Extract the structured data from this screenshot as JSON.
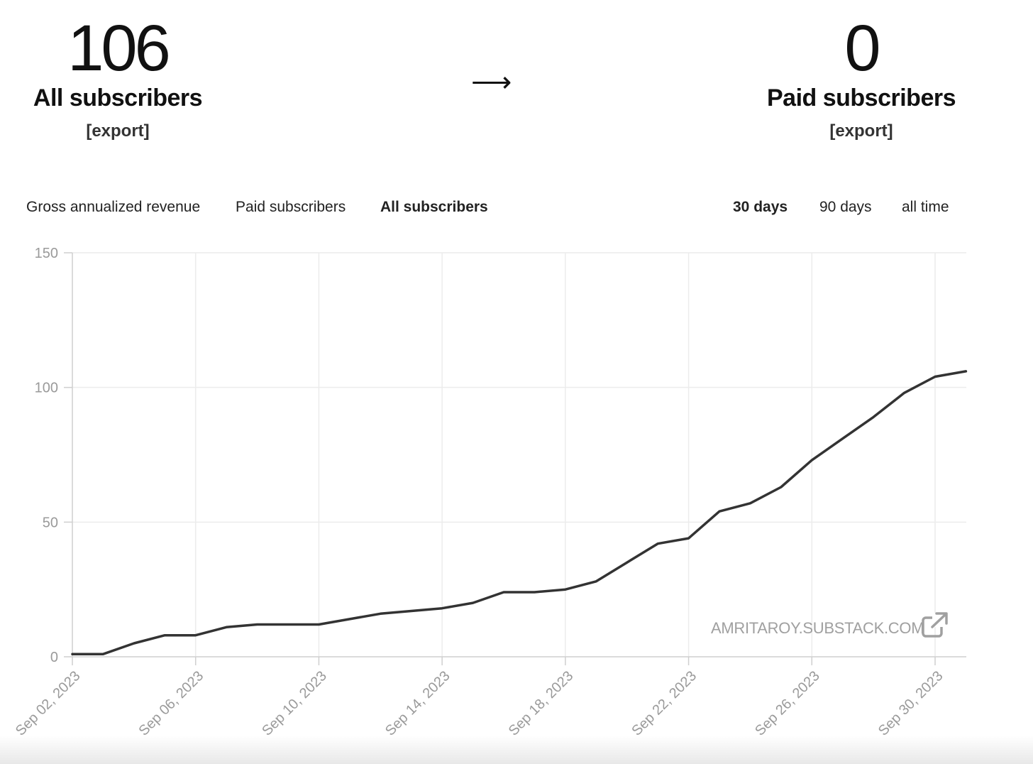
{
  "summary": {
    "all_subscribers": {
      "count": "106",
      "label": "All subscribers",
      "export": "[export]"
    },
    "arrow": "⟶",
    "paid_subscribers": {
      "count": "0",
      "label": "Paid subscribers",
      "export": "[export]"
    }
  },
  "metric_tabs": [
    {
      "label": "Gross annualized revenue",
      "active": false
    },
    {
      "label": "Paid subscribers",
      "active": false
    },
    {
      "label": "All subscribers",
      "active": true
    }
  ],
  "range_tabs": [
    {
      "label": "30 days",
      "active": true
    },
    {
      "label": "90 days",
      "active": false
    },
    {
      "label": "all time",
      "active": false
    }
  ],
  "watermark": {
    "text": "AMRITAROY.SUBSTACK.COM",
    "icon": "external-link-icon"
  },
  "colors": {
    "line": "#333333",
    "grid": "#ececec",
    "axis": "#cfcfcf",
    "tick": "#9a9a9a"
  },
  "chart_data": {
    "type": "line",
    "ylim": [
      0,
      150
    ],
    "yticks": [
      "0",
      "50",
      "100",
      "150"
    ],
    "xticks": [
      "Sep 02, 2023",
      "Sep 06, 2023",
      "Sep 10, 2023",
      "Sep 14, 2023",
      "Sep 18, 2023",
      "Sep 22, 2023",
      "Sep 26, 2023",
      "Sep 30, 2023"
    ],
    "x": [
      "Sep 02, 2023",
      "Sep 03, 2023",
      "Sep 04, 2023",
      "Sep 05, 2023",
      "Sep 06, 2023",
      "Sep 07, 2023",
      "Sep 08, 2023",
      "Sep 09, 2023",
      "Sep 10, 2023",
      "Sep 11, 2023",
      "Sep 12, 2023",
      "Sep 13, 2023",
      "Sep 14, 2023",
      "Sep 15, 2023",
      "Sep 16, 2023",
      "Sep 17, 2023",
      "Sep 18, 2023",
      "Sep 19, 2023",
      "Sep 20, 2023",
      "Sep 21, 2023",
      "Sep 22, 2023",
      "Sep 23, 2023",
      "Sep 24, 2023",
      "Sep 25, 2023",
      "Sep 26, 2023",
      "Sep 27, 2023",
      "Sep 28, 2023",
      "Sep 29, 2023",
      "Sep 30, 2023",
      "Oct 01, 2023"
    ],
    "series": [
      {
        "values": [
          1,
          1,
          5,
          8,
          8,
          11,
          12,
          12,
          12,
          14,
          16,
          17,
          18,
          20,
          24,
          24,
          25,
          28,
          35,
          42,
          44,
          54,
          57,
          63,
          73,
          81,
          89,
          98,
          104,
          106
        ]
      }
    ],
    "grid": true
  }
}
